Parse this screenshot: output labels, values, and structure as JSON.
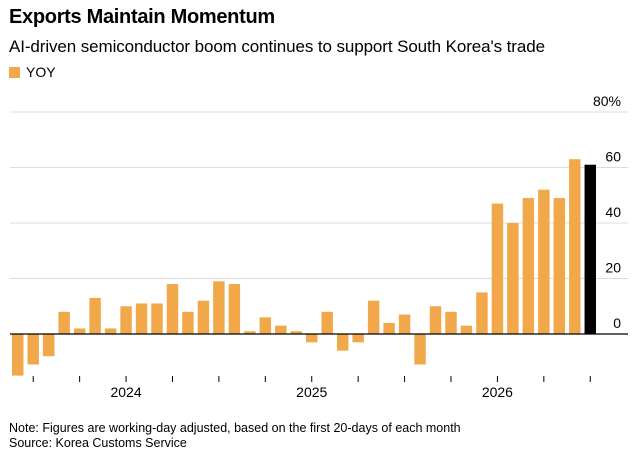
{
  "header": {
    "title": "Exports Maintain Momentum",
    "subtitle": "AI-driven semiconductor boom continues to support South Korea's trade"
  },
  "legend": {
    "label": "YOY",
    "color": "#f0a84b"
  },
  "footer": {
    "note": "Note: Figures are working-day adjusted, based on the first 20-days of each month",
    "source": "Source: Korea Customs Service"
  },
  "colors": {
    "bar": "#f0a84b",
    "highlight": "#000000",
    "grid": "#dddddd",
    "axis": "#000000"
  },
  "chart_data": {
    "type": "bar",
    "title": "Exports Maintain Momentum",
    "subtitle": "AI-driven semiconductor boom continues to support South Korea's trade",
    "xlabel": "",
    "ylabel": "",
    "ylim": [
      -15,
      80
    ],
    "y_ticks": [
      0,
      20,
      40,
      60,
      80
    ],
    "y_tick_labels": [
      "0",
      "20",
      "40",
      "60",
      "80%"
    ],
    "y_axis_side": "right",
    "grid": true,
    "legend_position": "top-left",
    "year_labels": [
      {
        "label": "2024",
        "month_index": 7
      },
      {
        "label": "2025",
        "month_index": 19
      },
      {
        "label": "2026",
        "month_index": 31
      }
    ],
    "series": [
      {
        "name": "YOY",
        "values": [
          -15,
          -11,
          -8,
          8,
          2,
          13,
          2,
          10,
          11,
          11,
          18,
          8,
          12,
          19,
          18,
          1,
          6,
          3,
          1,
          -3,
          8,
          -6,
          -3,
          12,
          4,
          7,
          -11,
          10,
          8,
          3,
          15,
          47,
          40,
          49,
          52,
          49,
          63,
          61
        ],
        "highlight_last": true
      }
    ]
  }
}
